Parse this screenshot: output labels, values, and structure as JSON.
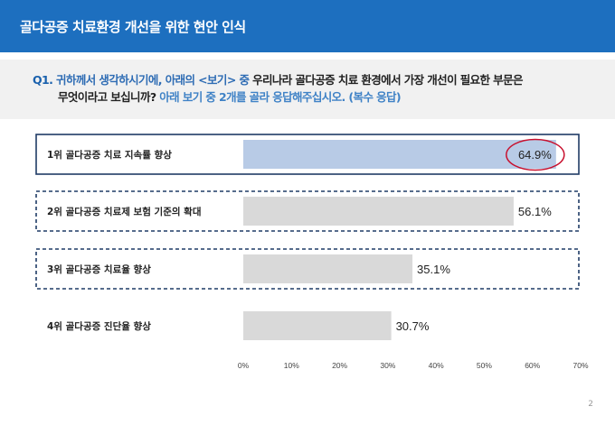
{
  "header": {
    "title": "골다공증 치료환경 개선을 위한 현안 인식"
  },
  "question": {
    "number": "Q1.",
    "part1": "귀하께서 생각하시기에, 아래의 <보기> 중",
    "part2": " 우리나라 골다공증 치료 환경에서 가장 개선이 필요한 부문은",
    "line2_dark": "무엇이라고 보십니까?",
    "line2_blue": " 아래 보기 중 2개를 골라 응답해주십시오. (복수 응답)"
  },
  "chart_data": {
    "type": "bar",
    "orientation": "horizontal",
    "categories": [
      "1위 골다공증 치료 지속률 향상",
      "2위 골다공증 치료제 보험 기준의 확대",
      "3위 골다공증 치료율 향상",
      "4위 골다공증 진단율 향상"
    ],
    "values": [
      64.9,
      56.1,
      35.1,
      30.7
    ],
    "value_labels": [
      "64.9%",
      "56.1%",
      "35.1%",
      "30.7%"
    ],
    "xlim": [
      0,
      70
    ],
    "xticks": [
      "0%",
      "10%",
      "20%",
      "30%",
      "40%",
      "50%",
      "60%",
      "70%"
    ],
    "xtick_values": [
      0,
      10,
      20,
      30,
      40,
      50,
      60,
      70
    ],
    "highlight_index": 0,
    "colors": {
      "highlight_bar": "#b8cbe6",
      "bar": "#d9d9d9",
      "frame": "#1f3b66",
      "circle": "#c8102e"
    }
  },
  "page_number": "2"
}
